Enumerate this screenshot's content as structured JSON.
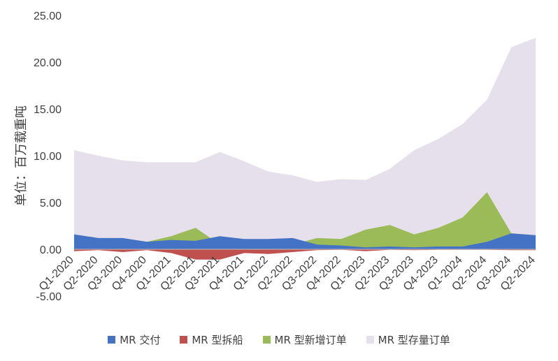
{
  "chart_data": {
    "type": "area",
    "ylabel": "单位：百万载重吨",
    "ylim": [
      -5,
      25
    ],
    "yticks": [
      "-5.00",
      "0.00",
      "5.00",
      "10.00",
      "15.00",
      "20.00",
      "25.00"
    ],
    "categories": [
      "Q1-2020",
      "Q2-2020",
      "Q3-2020",
      "Q4-2020",
      "Q1-2021",
      "Q2-2021",
      "Q3-2021",
      "Q4-2021",
      "Q1-2022",
      "Q2-2022",
      "Q3-2022",
      "Q4-2022",
      "Q1-2023",
      "Q2-2023",
      "Q3-2023",
      "Q4-2023",
      "Q1-2024",
      "Q2-2024",
      "Q3-2024",
      "Q2-2024"
    ],
    "series": [
      {
        "name": "MR 交付",
        "color": "#4472C4",
        "values": [
          1.6,
          1.2,
          1.2,
          0.8,
          1.0,
          0.9,
          1.4,
          1.1,
          1.1,
          1.2,
          0.5,
          0.4,
          0.2,
          0.3,
          0.2,
          0.3,
          0.3,
          0.8,
          1.7,
          1.5
        ]
      },
      {
        "name": "MR 型拆船",
        "color": "#C0504D",
        "values": [
          -0.2,
          -0.1,
          -0.3,
          -0.1,
          -0.4,
          -1.1,
          -1.1,
          -0.4,
          -0.5,
          -0.3,
          -0.1,
          -0.05,
          -0.2,
          -0.05,
          -0.1,
          -0.05,
          -0.05,
          -0.05,
          -0.1,
          -0.1
        ]
      },
      {
        "name": "MR 型新增订单",
        "color": "#9BBB59",
        "values": [
          1.0,
          0.8,
          1.1,
          0.8,
          1.4,
          2.3,
          0.5,
          0.3,
          0.8,
          0.5,
          1.2,
          1.1,
          2.1,
          2.6,
          1.6,
          2.3,
          3.4,
          6.1,
          1.7,
          1.5
        ]
      },
      {
        "name": "MR 型存量订单",
        "color": "#E6E0EC",
        "values": [
          10.6,
          10.0,
          9.5,
          9.3,
          9.3,
          9.3,
          10.4,
          9.4,
          8.3,
          7.9,
          7.2,
          7.5,
          7.4,
          8.6,
          10.6,
          11.8,
          13.4,
          16.0,
          21.6,
          22.6
        ]
      }
    ],
    "grid": false,
    "legend_position": "bottom"
  }
}
